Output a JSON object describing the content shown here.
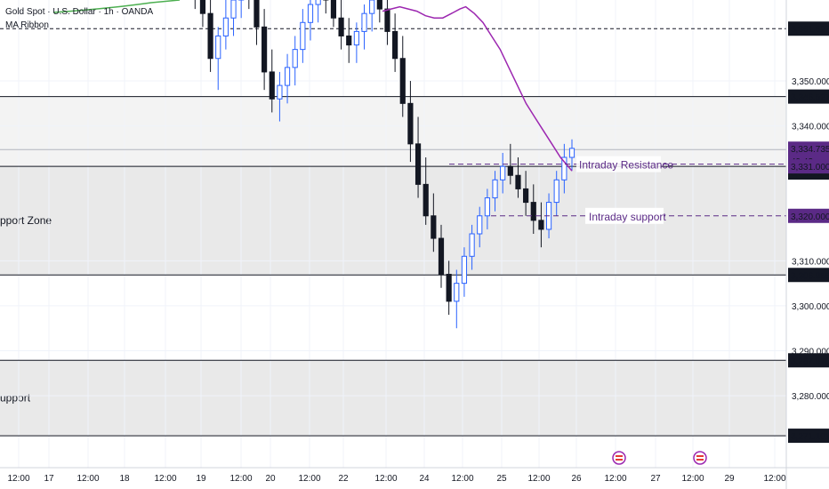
{
  "header": {
    "title": "Gold Spot · U.S. Dollar · 1h · OANDA",
    "indicator": "MA Ribbon"
  },
  "colors": {
    "up": "#2962ff",
    "down": "#131722",
    "ma": "#9c27b0",
    "ma_green": "#4caf50",
    "annotation": "#5b2a86",
    "line": "#131722",
    "zone": "#e9e9e9",
    "zone_light": "#f3f3f3"
  },
  "chart_data": {
    "type": "candlestick",
    "ylim": [
      3264,
      3368
    ],
    "y_ticks": [
      3280,
      3290,
      3300,
      3310,
      3340,
      3350
    ],
    "x_ticks": [
      "12:00",
      "17",
      "12:00",
      "18",
      "12:00",
      "19",
      "12:00",
      "20",
      "12:00",
      "22",
      "12:00",
      "24",
      "12:00",
      "25",
      "12:00",
      "26",
      "12:00",
      "27",
      "12:00",
      "29",
      "12:00"
    ],
    "level_lines": [
      {
        "value": 3361.627,
        "label": "3,361.627",
        "style": "dashed"
      },
      {
        "value": 3346.527,
        "label": "3,346.527",
        "style": "solid"
      },
      {
        "value": 3331.0,
        "label": "3,331.000",
        "style": "solid"
      },
      {
        "value": 3306.855,
        "label": "3,306.855",
        "style": "solid"
      },
      {
        "value": 3287.87,
        "label": "3,287.870",
        "style": "solid"
      },
      {
        "value": 3271.101,
        "label": "3,271.101",
        "style": "solid"
      }
    ],
    "zones": [
      {
        "from": 3306.855,
        "to": 3331.0,
        "label": "pport Zone"
      },
      {
        "from": 3271.101,
        "to": 3287.87,
        "label": "upport"
      }
    ],
    "annotations": [
      {
        "value": 3331.5,
        "label": "Intraday Resistance"
      },
      {
        "value": 3320.0,
        "label": "Intraday support"
      }
    ],
    "price_badges": [
      {
        "value": 3334.735,
        "label": "3,334.735",
        "sub": "49:43",
        "kind": "current"
      },
      {
        "value": 3331.0,
        "label": "3,331.000",
        "kind": "resistance"
      },
      {
        "value": 3320.0,
        "label": "3,320.000",
        "kind": "support"
      },
      {
        "value": 3330.036,
        "label": "3,330.036",
        "kind": "ma"
      }
    ],
    "candles": [
      [
        3372,
        3378,
        3368,
        3375
      ],
      [
        3375,
        3380,
        3371,
        3373
      ],
      [
        3373,
        3376,
        3366,
        3369
      ],
      [
        3369,
        3372,
        3362,
        3365
      ],
      [
        3365,
        3370,
        3352,
        3355
      ],
      [
        3355,
        3362,
        3348,
        3360
      ],
      [
        3360,
        3368,
        3357,
        3364
      ],
      [
        3364,
        3371,
        3360,
        3368
      ],
      [
        3368,
        3375,
        3364,
        3372
      ],
      [
        3372,
        3378,
        3366,
        3370
      ],
      [
        3370,
        3374,
        3358,
        3362
      ],
      [
        3362,
        3366,
        3348,
        3352
      ],
      [
        3352,
        3357,
        3343,
        3346
      ],
      [
        3346,
        3352,
        3341,
        3349
      ],
      [
        3349,
        3356,
        3345,
        3353
      ],
      [
        3353,
        3360,
        3349,
        3357
      ],
      [
        3357,
        3366,
        3354,
        3363
      ],
      [
        3363,
        3370,
        3359,
        3367
      ],
      [
        3367,
        3373,
        3363,
        3370
      ],
      [
        3370,
        3375,
        3365,
        3368
      ],
      [
        3368,
        3372,
        3362,
        3364
      ],
      [
        3364,
        3368,
        3357,
        3360
      ],
      [
        3360,
        3364,
        3354,
        3358
      ],
      [
        3358,
        3363,
        3354,
        3361
      ],
      [
        3361,
        3367,
        3357,
        3365
      ],
      [
        3365,
        3370,
        3361,
        3368
      ],
      [
        3368,
        3372,
        3363,
        3366
      ],
      [
        3366,
        3369,
        3358,
        3361
      ],
      [
        3361,
        3365,
        3352,
        3355
      ],
      [
        3355,
        3360,
        3342,
        3345
      ],
      [
        3345,
        3350,
        3332,
        3336
      ],
      [
        3336,
        3342,
        3324,
        3327
      ],
      [
        3327,
        3333,
        3318,
        3320
      ],
      [
        3320,
        3325,
        3312,
        3315
      ],
      [
        3315,
        3318,
        3304,
        3307
      ],
      [
        3307,
        3310,
        3298,
        3301
      ],
      [
        3301,
        3308,
        3295,
        3305
      ],
      [
        3305,
        3313,
        3302,
        3311
      ],
      [
        3311,
        3318,
        3308,
        3316
      ],
      [
        3316,
        3322,
        3313,
        3320
      ],
      [
        3320,
        3326,
        3317,
        3324
      ],
      [
        3324,
        3330,
        3321,
        3328
      ],
      [
        3328,
        3334,
        3325,
        3331
      ],
      [
        3331,
        3336,
        3327,
        3329
      ],
      [
        3329,
        3333,
        3324,
        3326
      ],
      [
        3326,
        3330,
        3320,
        3323
      ],
      [
        3323,
        3327,
        3316,
        3319
      ],
      [
        3319,
        3323,
        3313,
        3317
      ],
      [
        3317,
        3325,
        3315,
        3323
      ],
      [
        3323,
        3330,
        3320,
        3328
      ],
      [
        3328,
        3336,
        3325,
        3333
      ],
      [
        3333,
        3337,
        3330,
        3335
      ]
    ],
    "ma_line": [
      [
        3365.5,
        0
      ],
      [
        3366,
        3
      ],
      [
        3366.5,
        6
      ],
      [
        3366,
        9
      ],
      [
        3365.5,
        12
      ],
      [
        3364.5,
        15
      ],
      [
        3364,
        18
      ],
      [
        3364,
        21
      ],
      [
        3365,
        24
      ],
      [
        3366,
        27
      ],
      [
        3366.5,
        29
      ],
      [
        3365,
        32
      ],
      [
        3363,
        35
      ],
      [
        3360,
        38
      ],
      [
        3357,
        41
      ],
      [
        3353,
        44
      ],
      [
        3349,
        47
      ],
      [
        3345,
        50
      ],
      [
        3342,
        53
      ],
      [
        3339,
        56
      ],
      [
        3336,
        59
      ],
      [
        3333,
        62
      ],
      [
        3330,
        66
      ]
    ]
  }
}
